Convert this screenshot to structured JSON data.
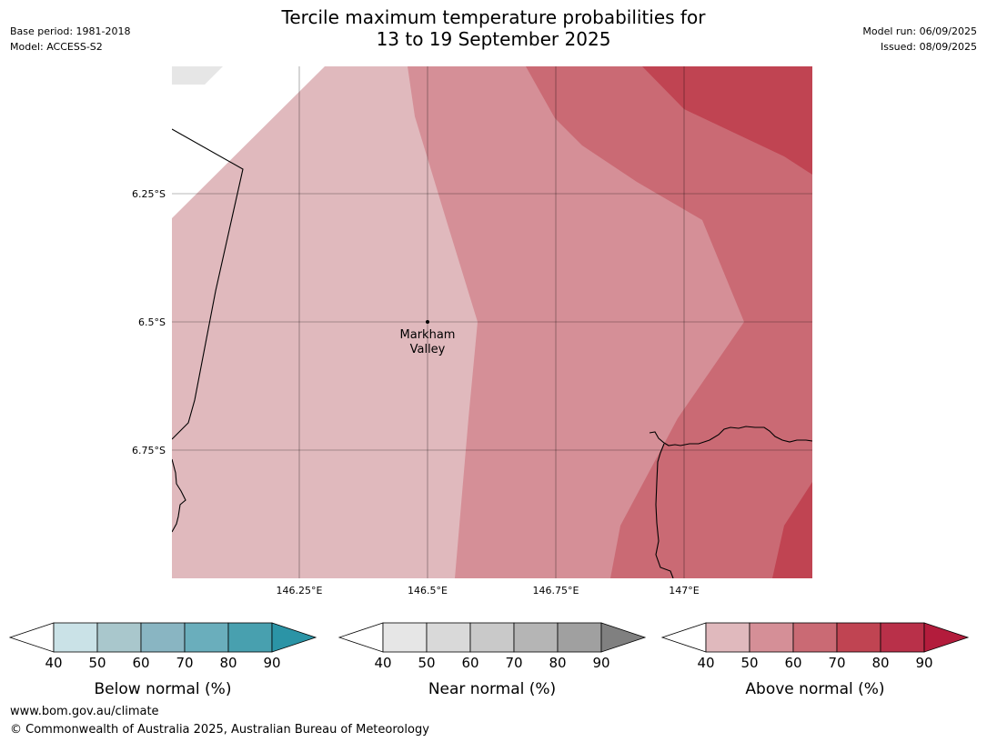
{
  "title_line1": "Tercile maximum temperature probabilities for",
  "title_line2": "13 to 19 September 2025",
  "header_left": {
    "base_period": "Base period: 1981-2018",
    "model": "Model: ACCESS-S2"
  },
  "header_right": {
    "model_run": "Model run: 06/09/2025",
    "issued": "Issued: 08/09/2025"
  },
  "map": {
    "lat_labels": [
      "6.25°S",
      "6.5°S",
      "6.75°S"
    ],
    "lon_labels": [
      "146.25°E",
      "146.5°E",
      "146.75°E",
      "147°E"
    ],
    "location": {
      "name_line1": "Markham",
      "name_line2": "Valley",
      "lat": -6.5,
      "lon": 146.5
    },
    "fill_colors": {
      "above_40_50": "#e0b9bd",
      "above_50_60": "#d58f97",
      "above_60_70": "#ca6a74",
      "above_70_80": "#c04452",
      "near_40_50": "#e6e6e6"
    }
  },
  "legends": [
    {
      "id": "below",
      "label": "Below normal (%)",
      "ticks": [
        "40",
        "50",
        "60",
        "70",
        "80",
        "90"
      ],
      "colors": [
        "#cae2e7",
        "#a9c7cc",
        "#89b5c2",
        "#6aaebc",
        "#48a0af",
        "#2b94a6"
      ]
    },
    {
      "id": "near",
      "label": "Near normal (%)",
      "ticks": [
        "40",
        "50",
        "60",
        "70",
        "80",
        "90"
      ],
      "colors": [
        "#e6e6e6",
        "#d9d9d9",
        "#c9c9c9",
        "#b5b5b5",
        "#a0a0a0",
        "#808080"
      ]
    },
    {
      "id": "above",
      "label": "Above normal (%)",
      "ticks": [
        "40",
        "50",
        "60",
        "70",
        "80",
        "90"
      ],
      "colors": [
        "#e0b9bd",
        "#d58f97",
        "#ca6a74",
        "#c04452",
        "#b93049",
        "#b31c3c"
      ]
    }
  ],
  "footer": {
    "url": "www.bom.gov.au/climate",
    "copyright": "© Commonwealth of Australia 2025, Australian Bureau of Meteorology"
  }
}
